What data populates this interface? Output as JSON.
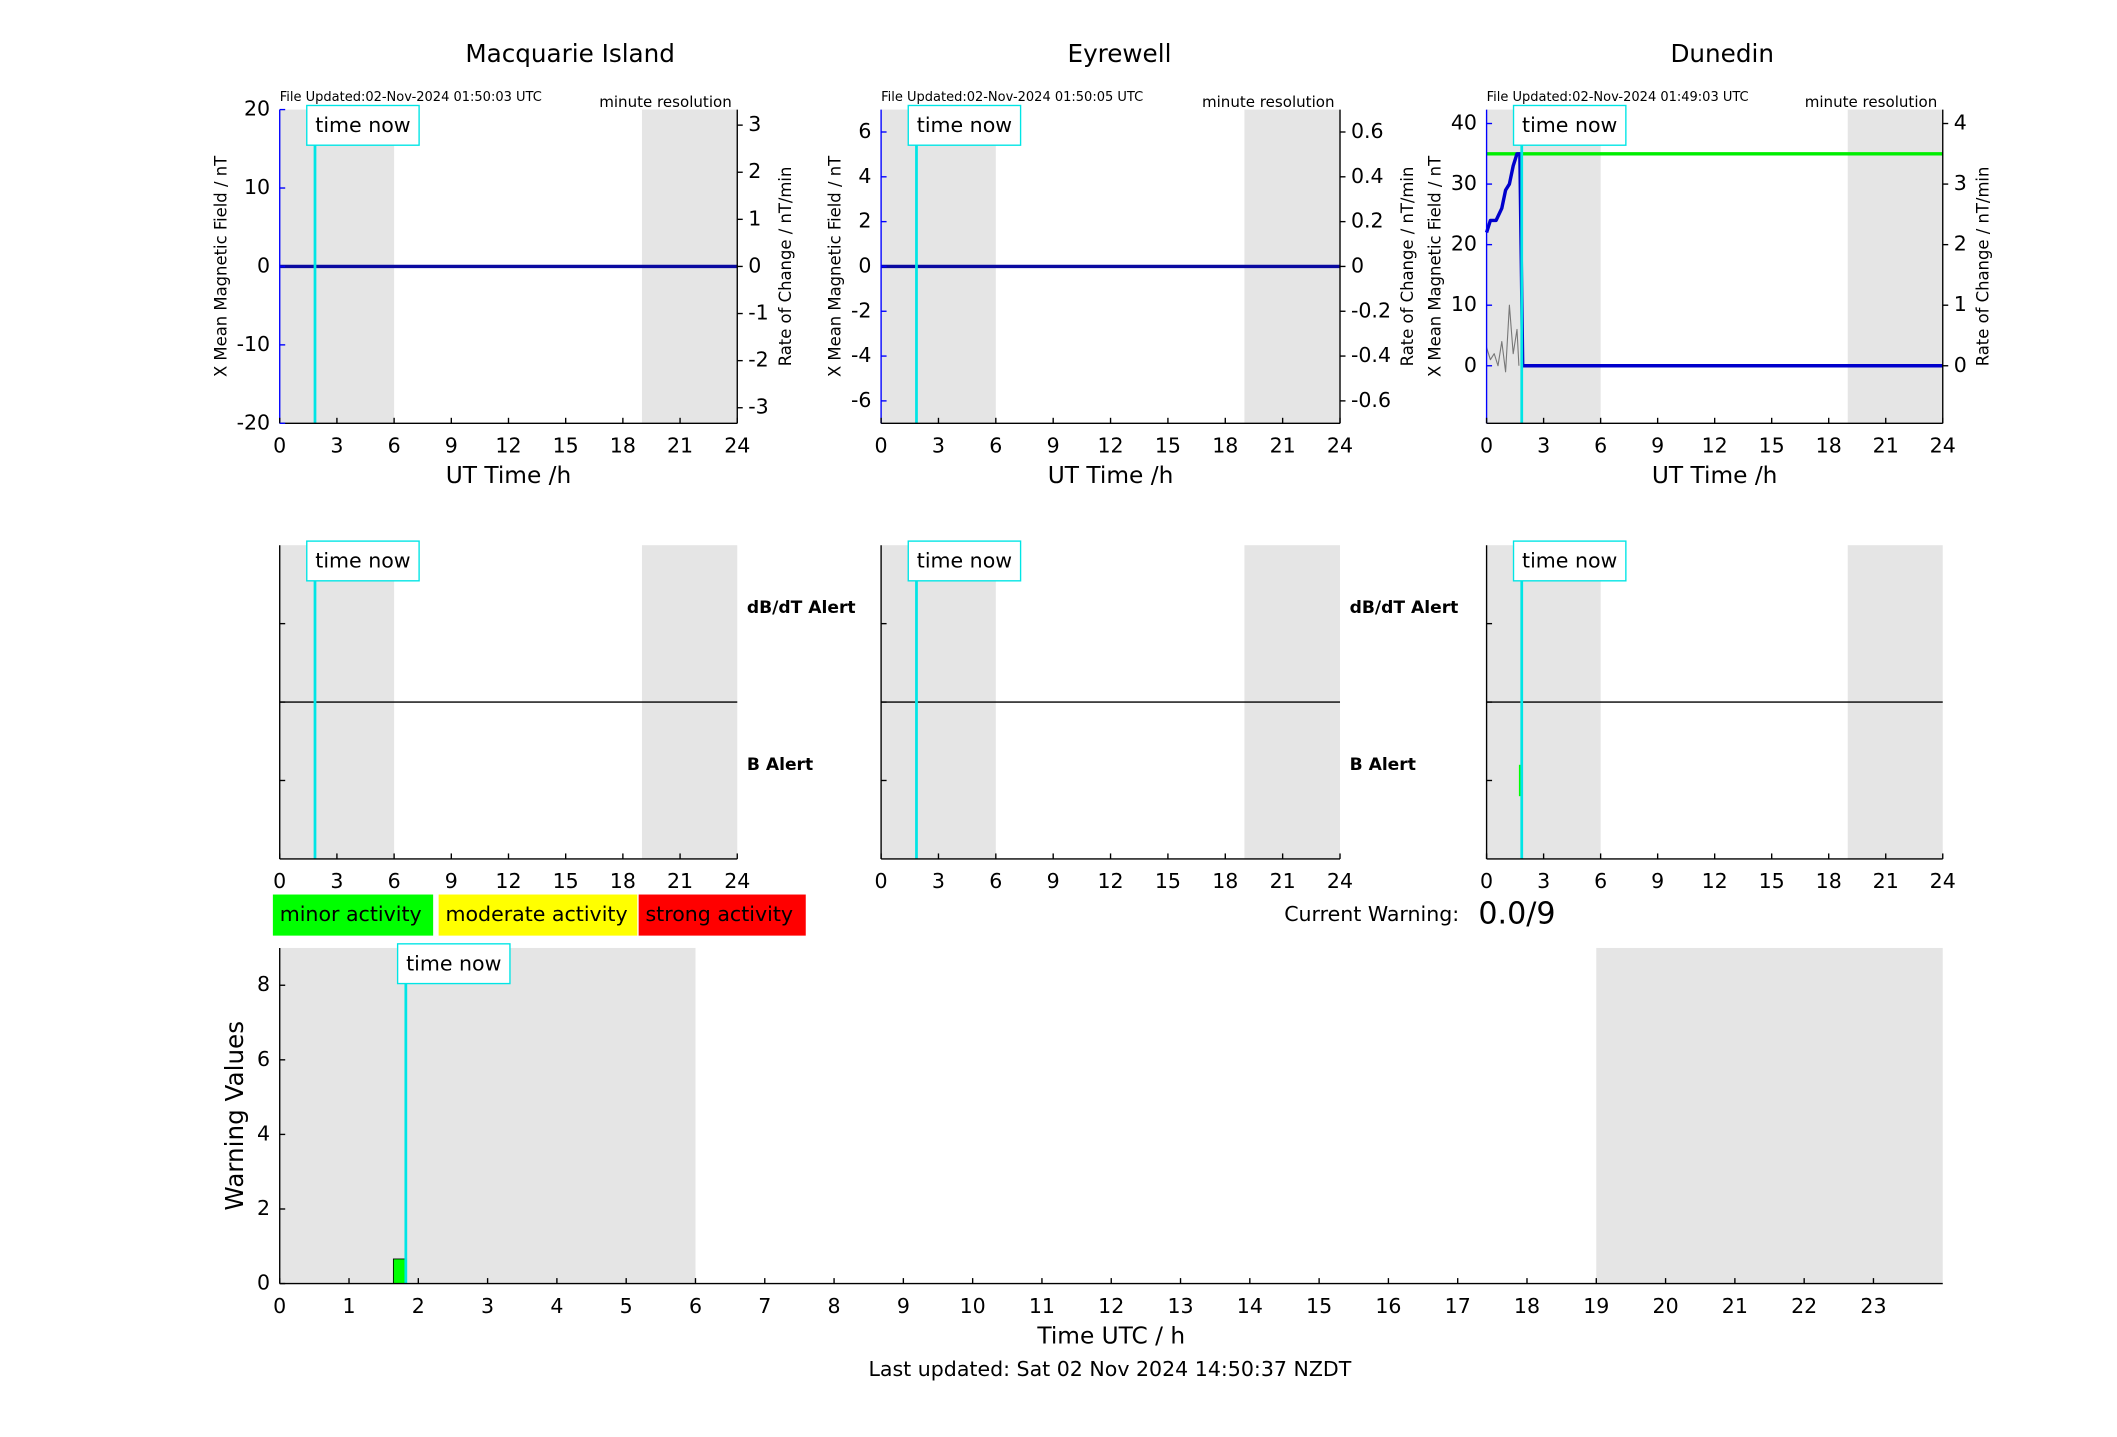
{
  "chart_data": [
    {
      "type": "line",
      "title": "Macquarie Island",
      "file_updated": "File Updated:02-Nov-2024 01:50:03 UTC",
      "resolution": "minute resolution",
      "ylabel": "X Mean Magnetic Field / nT",
      "y2label": "Rate of Change / nT/min",
      "xlabel": "UT Time /h",
      "y_color": "#0000ff",
      "xlim": [
        0,
        24
      ],
      "xticks": [
        0,
        3,
        6,
        9,
        12,
        15,
        18,
        21,
        24
      ],
      "ylim": [
        -20,
        20
      ],
      "yticks": [
        -20,
        -10,
        0,
        10,
        20
      ],
      "y2lim": [
        -3.33,
        3.33
      ],
      "y2ticks": [
        -3,
        -2,
        -1,
        0,
        1,
        2,
        3
      ],
      "shaded": [
        [
          0,
          6
        ],
        [
          19,
          24
        ]
      ],
      "annotations": [
        {
          "text": "time now",
          "x": 1.85,
          "color": "#00e5e5"
        }
      ],
      "series": [
        {
          "color": "#0a0aa0",
          "x": [
            0,
            24
          ],
          "values": [
            0,
            0
          ]
        }
      ]
    },
    {
      "type": "line",
      "title": "Eyrewell",
      "file_updated": "File Updated:02-Nov-2024 01:50:05 UTC",
      "resolution": "minute resolution",
      "ylabel": "X Mean Magnetic Field / nT",
      "y2label": "Rate of Change / nT/min",
      "xlabel": "UT Time /h",
      "y_color": "#0000ff",
      "xlim": [
        0,
        24
      ],
      "xticks": [
        0,
        3,
        6,
        9,
        12,
        15,
        18,
        21,
        24
      ],
      "ylim": [
        -7,
        7
      ],
      "yticks": [
        -6,
        -4,
        -2,
        0,
        2,
        4,
        6
      ],
      "y2lim": [
        -0.7,
        0.7
      ],
      "y2ticks": [
        -0.6,
        -0.4,
        -0.2,
        0,
        0.2,
        0.4,
        0.6
      ],
      "shaded": [
        [
          0,
          6
        ],
        [
          19,
          24
        ]
      ],
      "annotations": [
        {
          "text": "time now",
          "x": 1.85,
          "color": "#00e5e5"
        }
      ],
      "series": [
        {
          "color": "#0a0aa0",
          "x": [
            0,
            24
          ],
          "values": [
            0,
            0
          ]
        }
      ]
    },
    {
      "type": "line",
      "title": "Dunedin",
      "file_updated": "File Updated:02-Nov-2024 01:49:03 UTC",
      "resolution": "minute resolution",
      "ylabel": "X Mean Magnetic Field / nT",
      "y2label": "Rate of Change / nT/min",
      "xlabel": "UT Time /h",
      "y_color": "#0000ff",
      "xlim": [
        0,
        24
      ],
      "xticks": [
        0,
        3,
        6,
        9,
        12,
        15,
        18,
        21,
        24
      ],
      "ylim": [
        -9.5,
        42.3
      ],
      "yticks": [
        0,
        10,
        20,
        30,
        40
      ],
      "y2lim": [
        -0.95,
        4.23
      ],
      "y2ticks": [
        0,
        1,
        2,
        3,
        4
      ],
      "shaded": [
        [
          0,
          6
        ],
        [
          19,
          24
        ]
      ],
      "annotations": [
        {
          "text": "time now",
          "x": 1.85,
          "color": "#00e5e5"
        }
      ],
      "series": [
        {
          "color": "#00ee00",
          "x": [
            0,
            24
          ],
          "values": [
            35,
            35
          ]
        },
        {
          "color": "#777777",
          "axis": "y2",
          "x": [
            0,
            0.2,
            0.4,
            0.6,
            0.8,
            1.0,
            1.2,
            1.4,
            1.6,
            1.7
          ],
          "values": [
            0.3,
            0.1,
            0.2,
            0,
            0.4,
            -0.1,
            1.0,
            0.2,
            0.6,
            0
          ]
        },
        {
          "color": "#0000cc",
          "x": [
            0,
            0.2,
            0.5,
            0.8,
            1.0,
            1.2,
            1.4,
            1.6,
            1.75,
            1.9,
            24
          ],
          "values": [
            22,
            24,
            24,
            26,
            29,
            30,
            33,
            35,
            35,
            0,
            0
          ]
        }
      ]
    },
    {
      "type": "alert",
      "xlim": [
        0,
        24
      ],
      "xticks": [
        0,
        3,
        6,
        9,
        12,
        15,
        18,
        21,
        24
      ],
      "ylim": [
        0,
        2
      ],
      "yticks": [
        0.5,
        1,
        1.5
      ],
      "divider": 1,
      "row_labels": [
        {
          "text": "dB/dT Alert",
          "color": "#000000"
        },
        {
          "text": "B Alert",
          "color": "#0000ff"
        }
      ],
      "shaded": [
        [
          0,
          6
        ],
        [
          19,
          24
        ]
      ],
      "annotations": [
        {
          "text": "time now",
          "x": 1.85,
          "color": "#00e5e5"
        }
      ],
      "bars": []
    },
    {
      "type": "alert",
      "xlim": [
        0,
        24
      ],
      "xticks": [
        0,
        3,
        6,
        9,
        12,
        15,
        18,
        21,
        24
      ],
      "ylim": [
        0,
        2
      ],
      "yticks": [
        0.5,
        1,
        1.5
      ],
      "divider": 1,
      "row_labels": [
        {
          "text": "dB/dT Alert",
          "color": "#000000"
        },
        {
          "text": "B Alert",
          "color": "#0000ff"
        }
      ],
      "shaded": [
        [
          0,
          6
        ],
        [
          19,
          24
        ]
      ],
      "annotations": [
        {
          "text": "time now",
          "x": 1.85,
          "color": "#00e5e5"
        }
      ],
      "bars": []
    },
    {
      "type": "alert",
      "xlim": [
        0,
        24
      ],
      "xticks": [
        0,
        3,
        6,
        9,
        12,
        15,
        18,
        21,
        24
      ],
      "ylim": [
        0,
        2
      ],
      "yticks": [
        0.5,
        1,
        1.5
      ],
      "divider": 1,
      "shaded": [
        [
          0,
          6
        ],
        [
          19,
          24
        ]
      ],
      "annotations": [
        {
          "text": "time now",
          "x": 1.85,
          "color": "#00e5e5"
        }
      ],
      "bars": [
        {
          "x": [
            1.7,
            1.9
          ],
          "y": [
            0.4,
            0.6
          ],
          "color": "#00ff00"
        }
      ]
    },
    {
      "type": "bar",
      "ylabel": "Warning Values",
      "xlabel": "Time UTC / h",
      "xlim": [
        0,
        24
      ],
      "xticks": [
        0,
        1,
        2,
        3,
        4,
        5,
        6,
        7,
        8,
        9,
        10,
        11,
        12,
        13,
        14,
        15,
        16,
        17,
        18,
        19,
        20,
        21,
        22,
        23
      ],
      "ylim": [
        0,
        9
      ],
      "yticks": [
        0,
        2,
        4,
        6,
        8
      ],
      "shaded": [
        [
          0,
          6
        ],
        [
          19,
          24
        ]
      ],
      "annotations": [
        {
          "text": "time now",
          "x": 1.82,
          "color": "#00e5e5"
        }
      ],
      "bars": [
        {
          "x": [
            1.64,
            1.82
          ],
          "value": 0.66,
          "color": "#00ff00"
        }
      ]
    }
  ],
  "activity_levels": [
    {
      "label": "minor activity",
      "color": "#00ff00"
    },
    {
      "label": "moderate activity",
      "color": "#ffff00"
    },
    {
      "label": "strong activity",
      "color": "#ff0000"
    }
  ],
  "current_warning": {
    "label": "Current Warning:",
    "value": "0.0/9"
  },
  "footer": "Last updated: Sat 02 Nov 2024 14:50:37 NZDT"
}
